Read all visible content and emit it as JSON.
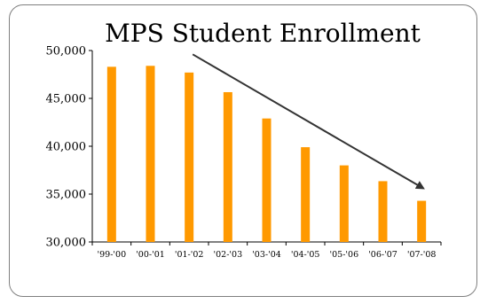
{
  "chart_data": {
    "type": "bar",
    "title": "MPS Student Enrollment",
    "xlabel": "",
    "ylabel": "",
    "categories": [
      "'99-'00",
      "'00-'01",
      "'01-'02",
      "'02-'03",
      "'03-'04",
      "'04-'05",
      "'05-'06",
      "'06-'07",
      "'07-'08"
    ],
    "values": [
      48300,
      48400,
      47700,
      45650,
      42900,
      39900,
      38000,
      36350,
      34300
    ],
    "ylim": [
      30000,
      50000
    ],
    "yticks": [
      30000,
      35000,
      40000,
      45000,
      50000
    ],
    "ytick_labels": [
      "30,000",
      "35,000",
      "40,000",
      "45,000",
      "50,000"
    ],
    "grid": false,
    "legend": "none",
    "bar_color": "#FF9900",
    "annotation": "downward trend arrow from '01-'02 to '07-'08"
  }
}
